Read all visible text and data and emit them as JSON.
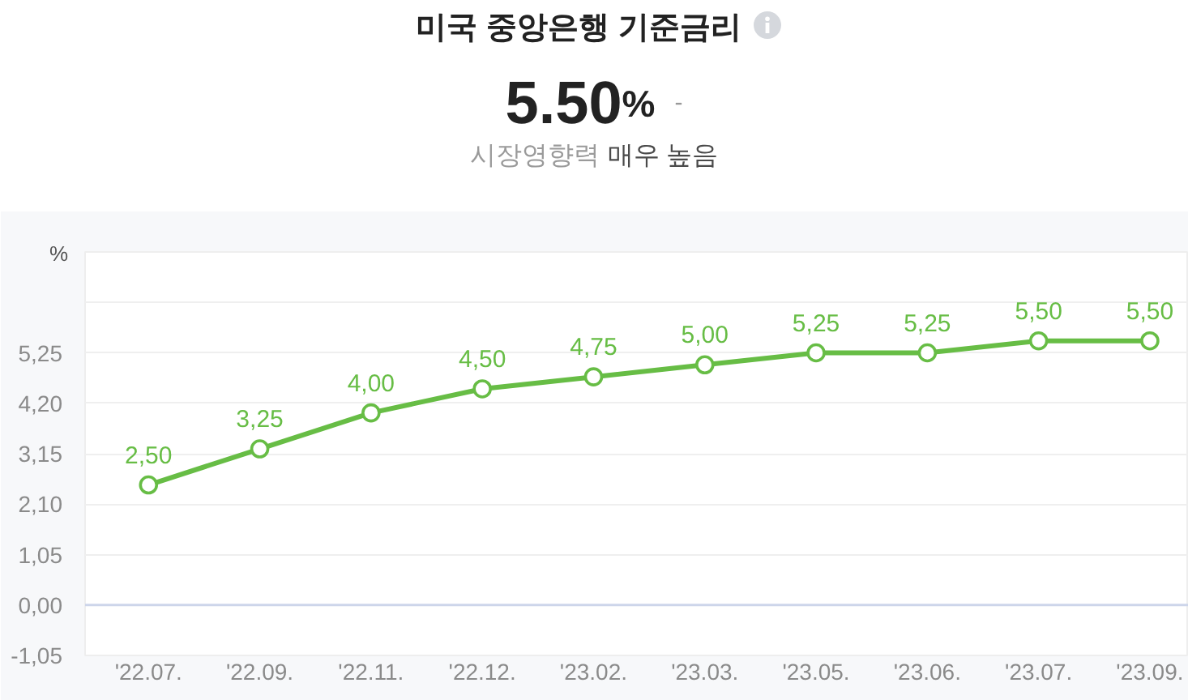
{
  "chart_data": {
    "type": "line",
    "title": "미국 중앙은행 기준금리",
    "annotations": [
      "5.50%",
      "-",
      "시장영향력",
      "매우 높음"
    ],
    "ylabel": "%",
    "categories": [
      "'22.07.",
      "'22.09.",
      "'22.11.",
      "'22.12.",
      "'23.02.",
      "'23.03.",
      "'23.05.",
      "'23.06.",
      "'23.07.",
      "'23.09."
    ],
    "series": [
      {
        "color": "#67bd45",
        "values": [
          2.5,
          3.25,
          4.0,
          4.5,
          4.75,
          5.0,
          5.25,
          5.25,
          5.5,
          5.5
        ],
        "value_labels": [
          "2,50",
          "3,25",
          "4,00",
          "4,50",
          "4,75",
          "5,00",
          "5,25",
          "5,25",
          "5,50",
          "5,50"
        ]
      }
    ],
    "ylim": [
      -1.05,
      7.35
    ],
    "yticks": [
      {
        "value": -1.05,
        "label": "-1,05"
      },
      {
        "value": 0,
        "label": "0,00"
      },
      {
        "value": 1.05,
        "label": "1,05"
      },
      {
        "value": 2.1,
        "label": "2,10"
      },
      {
        "value": 3.15,
        "label": "3,15"
      },
      {
        "value": 4.2,
        "label": "4,20"
      },
      {
        "value": 5.25,
        "label": "5,25"
      },
      {
        "value": 6.3,
        "label": null
      },
      {
        "value": 7.35,
        "label": null
      }
    ],
    "ref_lines": [
      {
        "axis": "y",
        "value": 0,
        "color": "#cdd5ea"
      }
    ],
    "grid": "y",
    "marker": "circle",
    "line_style": "solid"
  }
}
